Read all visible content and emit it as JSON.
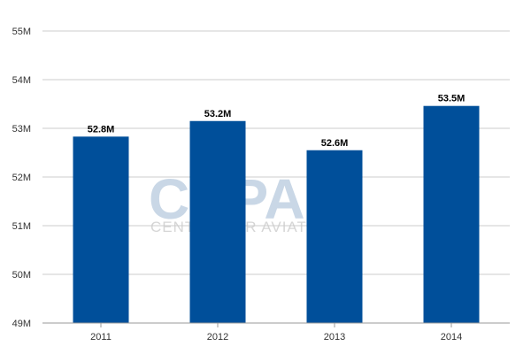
{
  "watermark": {
    "logo_text": "CAPA",
    "tagline": "CENTRE FOR AVIATION"
  },
  "chart_data": {
    "type": "bar",
    "categories": [
      "2011",
      "2012",
      "2013",
      "2014"
    ],
    "values": [
      52.83,
      53.15,
      52.55,
      53.46
    ],
    "data_labels": [
      "52.8M",
      "53.2M",
      "52.6M",
      "53.5M"
    ],
    "y_ticks": [
      49,
      50,
      51,
      52,
      53,
      54,
      55
    ],
    "y_tick_labels": [
      "49M",
      "50M",
      "51M",
      "52M",
      "53M",
      "54M",
      "55M"
    ],
    "ylim": [
      49,
      55
    ],
    "grid": true,
    "bar_color": "#004f9a",
    "grid_color": "#cccccc",
    "title": "",
    "xlabel": "",
    "ylabel": ""
  }
}
